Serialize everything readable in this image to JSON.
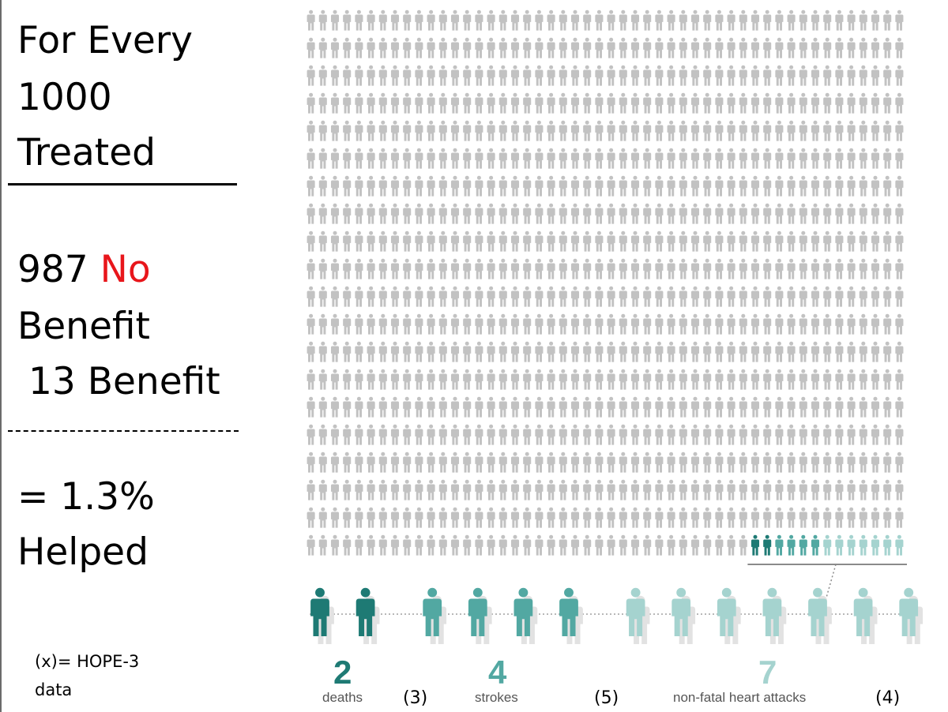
{
  "summary": {
    "heading_lines": [
      "For Every",
      "1000",
      "Treated"
    ],
    "no_benefit_count": "987",
    "no_word": "No",
    "benefit_word": "Benefit",
    "benefit_line": "13 Benefit",
    "percent_line": "= 1.3%",
    "helped_word": "Helped"
  },
  "footnote": {
    "line1": "(x)= HOPE-3",
    "line2": "data"
  },
  "colors": {
    "grey": "#c2c2c2",
    "dark_teal": "#1e7a74",
    "mid_teal": "#52a8a2",
    "light_teal": "#a5d3cf",
    "label_grey": "#555555"
  },
  "chart_data": {
    "type": "table",
    "title": "For Every 1000 Treated",
    "total": 1000,
    "grid_rows": 20,
    "grid_cols": 50,
    "no_benefit": 987,
    "benefit": 13,
    "categories": [
      {
        "name": "deaths",
        "count": 2,
        "label": "2",
        "hope3": "(3)",
        "color": "dark_teal"
      },
      {
        "name": "strokes",
        "count": 4,
        "label": "4",
        "hope3": "(5)",
        "color": "mid_teal"
      },
      {
        "name": "non-fatal heart attacks",
        "count": 7,
        "label": "7",
        "hope3": "(4)",
        "color": "light_teal"
      }
    ]
  }
}
